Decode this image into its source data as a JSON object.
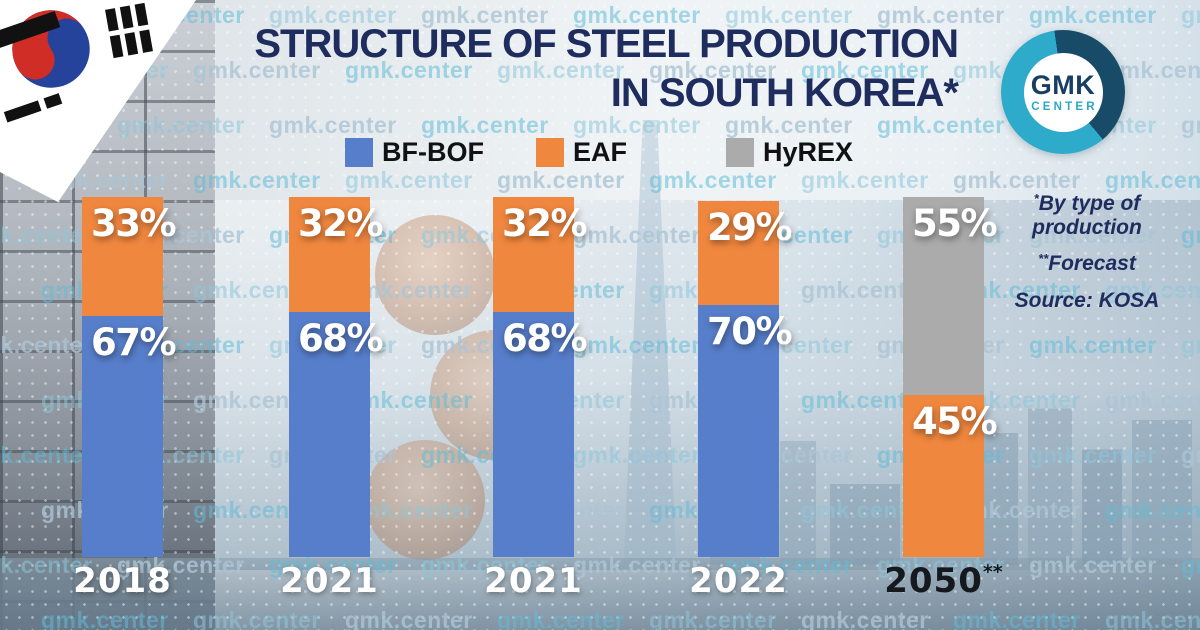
{
  "title": {
    "line1": "STRUCTURE OF STEEL PRODUCTION",
    "line2": "IN SOUTH KOREA*"
  },
  "logo": {
    "top": "GMK",
    "bottom": "CENTER"
  },
  "watermark": {
    "text": "gmk.center"
  },
  "flag": {
    "country": "South Korea"
  },
  "legend": [
    {
      "label": "BF-BOF",
      "color": "#577ECA"
    },
    {
      "label": "EAF",
      "color": "#F0873F"
    },
    {
      "label": "HyREX",
      "color": "#ABABAB"
    }
  ],
  "notes": [
    {
      "sup": "*",
      "text": "By type of production"
    },
    {
      "sup": "**",
      "text": "Forecast"
    },
    {
      "sup": "",
      "text": "Source: KOSA"
    }
  ],
  "chart_data": {
    "type": "bar",
    "stacked": true,
    "unit": "%",
    "title": "Structure of steel production in South Korea, by type of production",
    "categories": [
      "2018",
      "2021",
      "2021",
      "2022",
      "2050"
    ],
    "category_sups": [
      "",
      "",
      "",
      "",
      "**"
    ],
    "category_label_colors": [
      "white",
      "white",
      "white",
      "white",
      "dark"
    ],
    "series": [
      {
        "name": "BF-BOF",
        "color": "#577ECA",
        "values": [
          67,
          68,
          68,
          70,
          null
        ]
      },
      {
        "name": "EAF",
        "color": "#F0873F",
        "values": [
          33,
          32,
          32,
          29,
          45
        ]
      },
      {
        "name": "HyREX",
        "color": "#ABABAB",
        "values": [
          null,
          null,
          null,
          null,
          55
        ]
      }
    ],
    "ylim": [
      0,
      100
    ],
    "value_labels": true,
    "legend_position": "top",
    "source": "KOSA",
    "forecast_note": "2050 values are a forecast"
  }
}
